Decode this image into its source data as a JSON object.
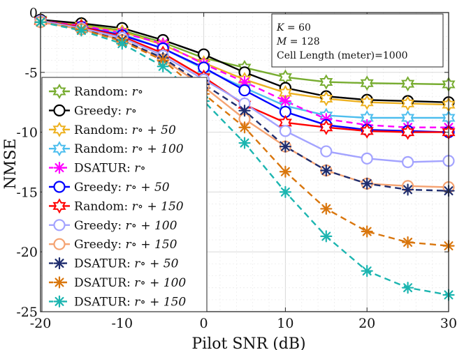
{
  "chart_data": {
    "type": "line",
    "title": "",
    "xlabel": "Pilot SNR (dB)",
    "ylabel": "NMSE",
    "xlim": [
      -20,
      30
    ],
    "ylim": [
      -25,
      0
    ],
    "grid": true,
    "minor_grid": true,
    "x": [
      -20,
      -15,
      -10,
      -5,
      0,
      5,
      10,
      15,
      20,
      25,
      30
    ],
    "xticks": [
      "-20",
      "-10",
      "0",
      "10",
      "20",
      "30"
    ],
    "yticks": [
      "0",
      "-5",
      "-10",
      "-15",
      "-20",
      "-25"
    ],
    "annotation": {
      "line1_var": "K",
      "line1_val": " = 60",
      "line2_var": "M",
      "line2_val": " = 128",
      "line3": "Cell Length (meter)=1000"
    },
    "legend_position": "left",
    "series": [
      {
        "name": "Random: r∘",
        "label": "Random: ",
        "expr": "r∘",
        "color": "#77ac30",
        "dash": "solid",
        "marker": "hexagram",
        "values": [
          -0.6,
          -1.0,
          -1.5,
          -2.5,
          -3.8,
          -4.6,
          -5.4,
          -5.8,
          -5.9,
          -5.95,
          -6.0
        ]
      },
      {
        "name": "Greedy: r∘",
        "label": "Greedy: ",
        "expr": "r∘",
        "color": "#000000",
        "dash": "solid",
        "marker": "circle",
        "values": [
          -0.6,
          -0.9,
          -1.3,
          -2.3,
          -3.5,
          -5.0,
          -6.3,
          -7.0,
          -7.3,
          -7.4,
          -7.5
        ]
      },
      {
        "name": "Random: r∘ + 50",
        "label": "Random: ",
        "expr": "r∘ + 50",
        "color": "#edb120",
        "dash": "solid",
        "marker": "hexagram",
        "values": [
          -0.7,
          -1.1,
          -1.6,
          -2.7,
          -4.2,
          -5.6,
          -6.7,
          -7.2,
          -7.5,
          -7.6,
          -7.7
        ]
      },
      {
        "name": "Random: r∘ + 100",
        "label": "Random: ",
        "expr": "r∘ + 100",
        "color": "#4dbeee",
        "dash": "solid",
        "marker": "hexagram",
        "values": [
          -0.7,
          -1.2,
          -1.8,
          -3.0,
          -4.7,
          -6.3,
          -7.8,
          -8.6,
          -8.8,
          -8.8,
          -8.8
        ]
      },
      {
        "name": "DSATUR: r∘",
        "label": "DSATUR: ",
        "expr": "r∘",
        "color": "#ff00ff",
        "dash": "dashed",
        "marker": "asterisk",
        "values": [
          -0.7,
          -1.1,
          -1.7,
          -2.6,
          -4.3,
          -5.8,
          -7.4,
          -8.9,
          -9.4,
          -9.6,
          -9.6
        ]
      },
      {
        "name": "Greedy: r∘ + 50",
        "label": "Greedy: ",
        "expr": "r∘ + 50",
        "color": "#0000ff",
        "dash": "solid",
        "marker": "circle",
        "values": [
          -0.7,
          -1.2,
          -1.9,
          -3.0,
          -4.6,
          -6.5,
          -8.3,
          -9.4,
          -9.8,
          -9.9,
          -10.0
        ]
      },
      {
        "name": "Random: r∘ + 150",
        "label": "Random: ",
        "expr": "r∘ + 150",
        "color": "#ff0000",
        "dash": "solid",
        "marker": "hexagram",
        "values": [
          -0.7,
          -1.2,
          -2.0,
          -3.4,
          -5.4,
          -7.7,
          -9.2,
          -9.6,
          -9.9,
          -10.0,
          -10.0
        ]
      },
      {
        "name": "Greedy: r∘ + 100",
        "label": "Greedy: ",
        "expr": "r∘ + 100",
        "color": "#a3a3ff",
        "dash": "solid",
        "marker": "circle",
        "values": [
          -0.7,
          -1.3,
          -2.1,
          -3.6,
          -5.6,
          -7.6,
          -9.9,
          -11.6,
          -12.2,
          -12.5,
          -12.4
        ]
      },
      {
        "name": "Greedy: r∘ + 150",
        "label": "Greedy: ",
        "expr": "r∘ + 150",
        "color": "#f5a372",
        "dash": "solid",
        "marker": "circle",
        "values": [
          -0.8,
          -1.4,
          -2.3,
          -3.9,
          -6.2,
          -8.9,
          -11.2,
          -13.2,
          -14.3,
          -14.5,
          -14.6
        ]
      },
      {
        "name": "DSATUR: r∘ + 50",
        "label": "DSATUR: ",
        "expr": "r∘ + 50",
        "color": "#1f2d6e",
        "dash": "dashed",
        "marker": "asterisk",
        "values": [
          -0.8,
          -1.4,
          -2.3,
          -3.8,
          -6.0,
          -8.2,
          -11.2,
          -13.2,
          -14.3,
          -14.8,
          -14.9
        ]
      },
      {
        "name": "DSATUR: r∘ + 100",
        "label": "DSATUR: ",
        "expr": "r∘ + 100",
        "color": "#d9760d",
        "dash": "dashed",
        "marker": "asterisk",
        "values": [
          -0.8,
          -1.4,
          -2.4,
          -4.0,
          -6.8,
          -9.6,
          -13.3,
          -16.4,
          -18.3,
          -19.2,
          -19.5
        ]
      },
      {
        "name": "DSATUR: r∘ + 150",
        "label": "DSATUR: ",
        "expr": "r∘ + 150",
        "color": "#1cb5b0",
        "dash": "dashed",
        "marker": "asterisk",
        "values": [
          -0.8,
          -1.5,
          -2.6,
          -4.5,
          -7.4,
          -10.9,
          -15.0,
          -18.7,
          -21.6,
          -23.0,
          -23.6
        ]
      }
    ]
  }
}
